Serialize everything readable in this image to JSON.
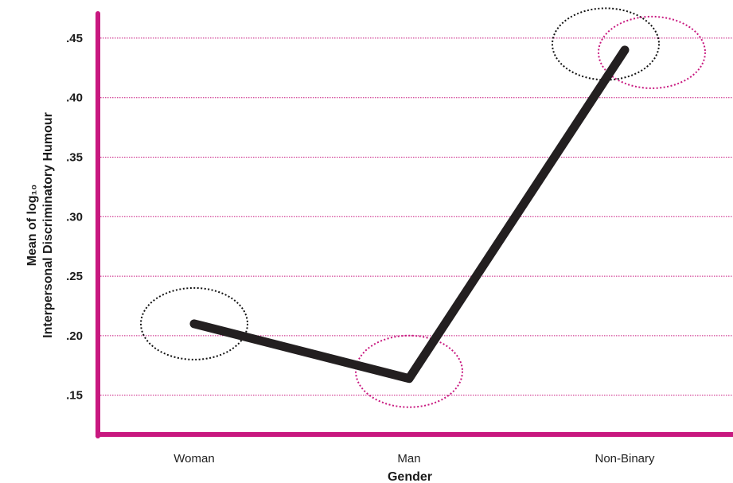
{
  "chart_data": {
    "type": "line",
    "categories": [
      "Woman",
      "Man",
      "Non-Binary"
    ],
    "values": [
      0.21,
      0.164,
      0.44
    ],
    "yticks": [
      ".15",
      ".20",
      ".25",
      ".30",
      ".35",
      ".40",
      ".45"
    ],
    "ytick_values": [
      0.15,
      0.2,
      0.25,
      0.3,
      0.35,
      0.4,
      0.45
    ],
    "ylim": [
      0.117,
      0.47
    ],
    "xlabel": "Gender",
    "ylabel_line1": "Mean of log₁₀",
    "ylabel_line2": "Interpersonal Discriminatory Humour",
    "grid": true,
    "highlight_ellipses": [
      {
        "category": "Woman",
        "value": 0.21,
        "color": "black"
      },
      {
        "category": "Man",
        "value": 0.17,
        "color": "magenta"
      },
      {
        "category": "Non-Binary",
        "value": 0.445,
        "color": "black"
      },
      {
        "category": "Non-Binary",
        "value": 0.438,
        "color": "magenta"
      }
    ],
    "colors": {
      "axis": "#c8187f",
      "grid": "#c8187f",
      "line": "#231f20",
      "ellipse_black": "#111111",
      "ellipse_magenta": "#c8187f"
    }
  }
}
